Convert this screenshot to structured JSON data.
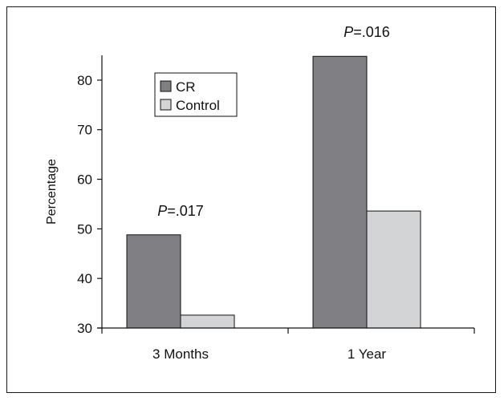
{
  "chart_data": {
    "type": "bar",
    "categories": [
      "3 Months",
      "1 Year"
    ],
    "series": [
      {
        "name": "CR",
        "values": [
          48.8,
          84.8
        ],
        "color": "#7f7f84"
      },
      {
        "name": "Control",
        "values": [
          32.6,
          53.6
        ],
        "color": "#d3d4d6"
      }
    ],
    "ylabel": "Percentage",
    "xlabel": "",
    "ylim": [
      30,
      85
    ],
    "yticks": [
      30,
      40,
      50,
      60,
      70,
      80
    ],
    "annotations": [
      {
        "category": "3 Months",
        "prefix": "P",
        "text": "=.017"
      },
      {
        "category": "1 Year",
        "prefix": "P",
        "text": "=.016"
      }
    ],
    "legend_position": "top-left",
    "grid": false
  }
}
